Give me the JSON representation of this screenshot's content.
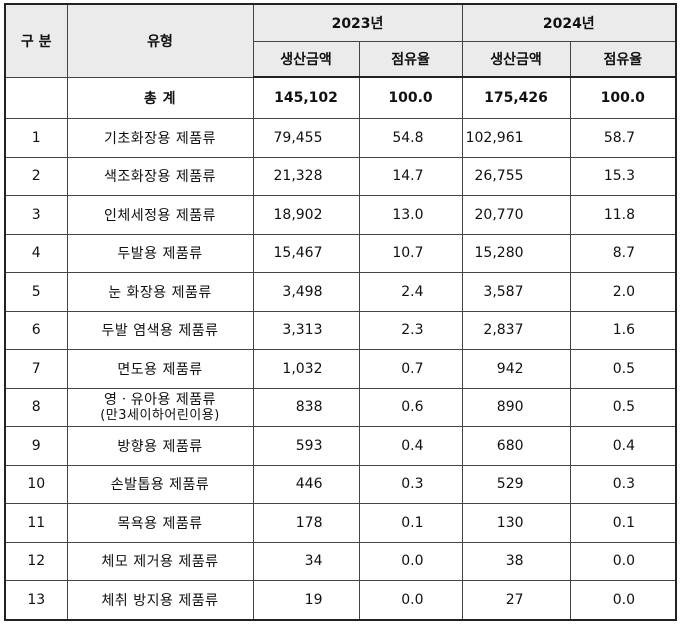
{
  "header": {
    "gubun": "구 분",
    "type": "유형",
    "year1": "2023년",
    "year2": "2024년",
    "amount": "생산금액",
    "share": "점유율"
  },
  "total": {
    "label": "총 계",
    "amount_2023": "145,102",
    "share_2023": "100.0",
    "amount_2024": "175,426",
    "share_2024": "100.0"
  },
  "rows": [
    {
      "no": "1",
      "type": "기초화장용 제품류",
      "amount_2023": "79,455",
      "share_2023": "54.8",
      "amount_2024": "102,961",
      "share_2024": "58.7"
    },
    {
      "no": "2",
      "type": "색조화장용 제품류",
      "amount_2023": "21,328",
      "share_2023": "14.7",
      "amount_2024": "26,755",
      "share_2024": "15.3"
    },
    {
      "no": "3",
      "type": "인체세정용 제품류",
      "amount_2023": "18,902",
      "share_2023": "13.0",
      "amount_2024": "20,770",
      "share_2024": "11.8"
    },
    {
      "no": "4",
      "type": "두발용 제품류",
      "amount_2023": "15,467",
      "share_2023": "10.7",
      "amount_2024": "15,280",
      "share_2024": "8.7"
    },
    {
      "no": "5",
      "type": "눈 화장용 제품류",
      "amount_2023": "3,498",
      "share_2023": "2.4",
      "amount_2024": "3,587",
      "share_2024": "2.0"
    },
    {
      "no": "6",
      "type": "두발 염색용 제품류",
      "amount_2023": "3,313",
      "share_2023": "2.3",
      "amount_2024": "2,837",
      "share_2024": "1.6"
    },
    {
      "no": "7",
      "type": "면도용 제품류",
      "amount_2023": "1,032",
      "share_2023": "0.7",
      "amount_2024": "942",
      "share_2024": "0.5"
    },
    {
      "no": "8",
      "type": "영ㆍ유아용 제품류",
      "type_sub": "(만3세이하어린이용)",
      "amount_2023": "838",
      "share_2023": "0.6",
      "amount_2024": "890",
      "share_2024": "0.5"
    },
    {
      "no": "9",
      "type": "방향용 제품류",
      "amount_2023": "593",
      "share_2023": "0.4",
      "amount_2024": "680",
      "share_2024": "0.4"
    },
    {
      "no": "10",
      "type": "손발톱용 제품류",
      "amount_2023": "446",
      "share_2023": "0.3",
      "amount_2024": "529",
      "share_2024": "0.3"
    },
    {
      "no": "11",
      "type": "목욕용 제품류",
      "amount_2023": "178",
      "share_2023": "0.1",
      "amount_2024": "130",
      "share_2024": "0.1"
    },
    {
      "no": "12",
      "type": "체모 제거용 제품류",
      "amount_2023": "34",
      "share_2023": "0.0",
      "amount_2024": "38",
      "share_2024": "0.0"
    },
    {
      "no": "13",
      "type": "체취 방지용 제품류",
      "amount_2023": "19",
      "share_2023": "0.0",
      "amount_2024": "27",
      "share_2024": "0.0"
    }
  ]
}
